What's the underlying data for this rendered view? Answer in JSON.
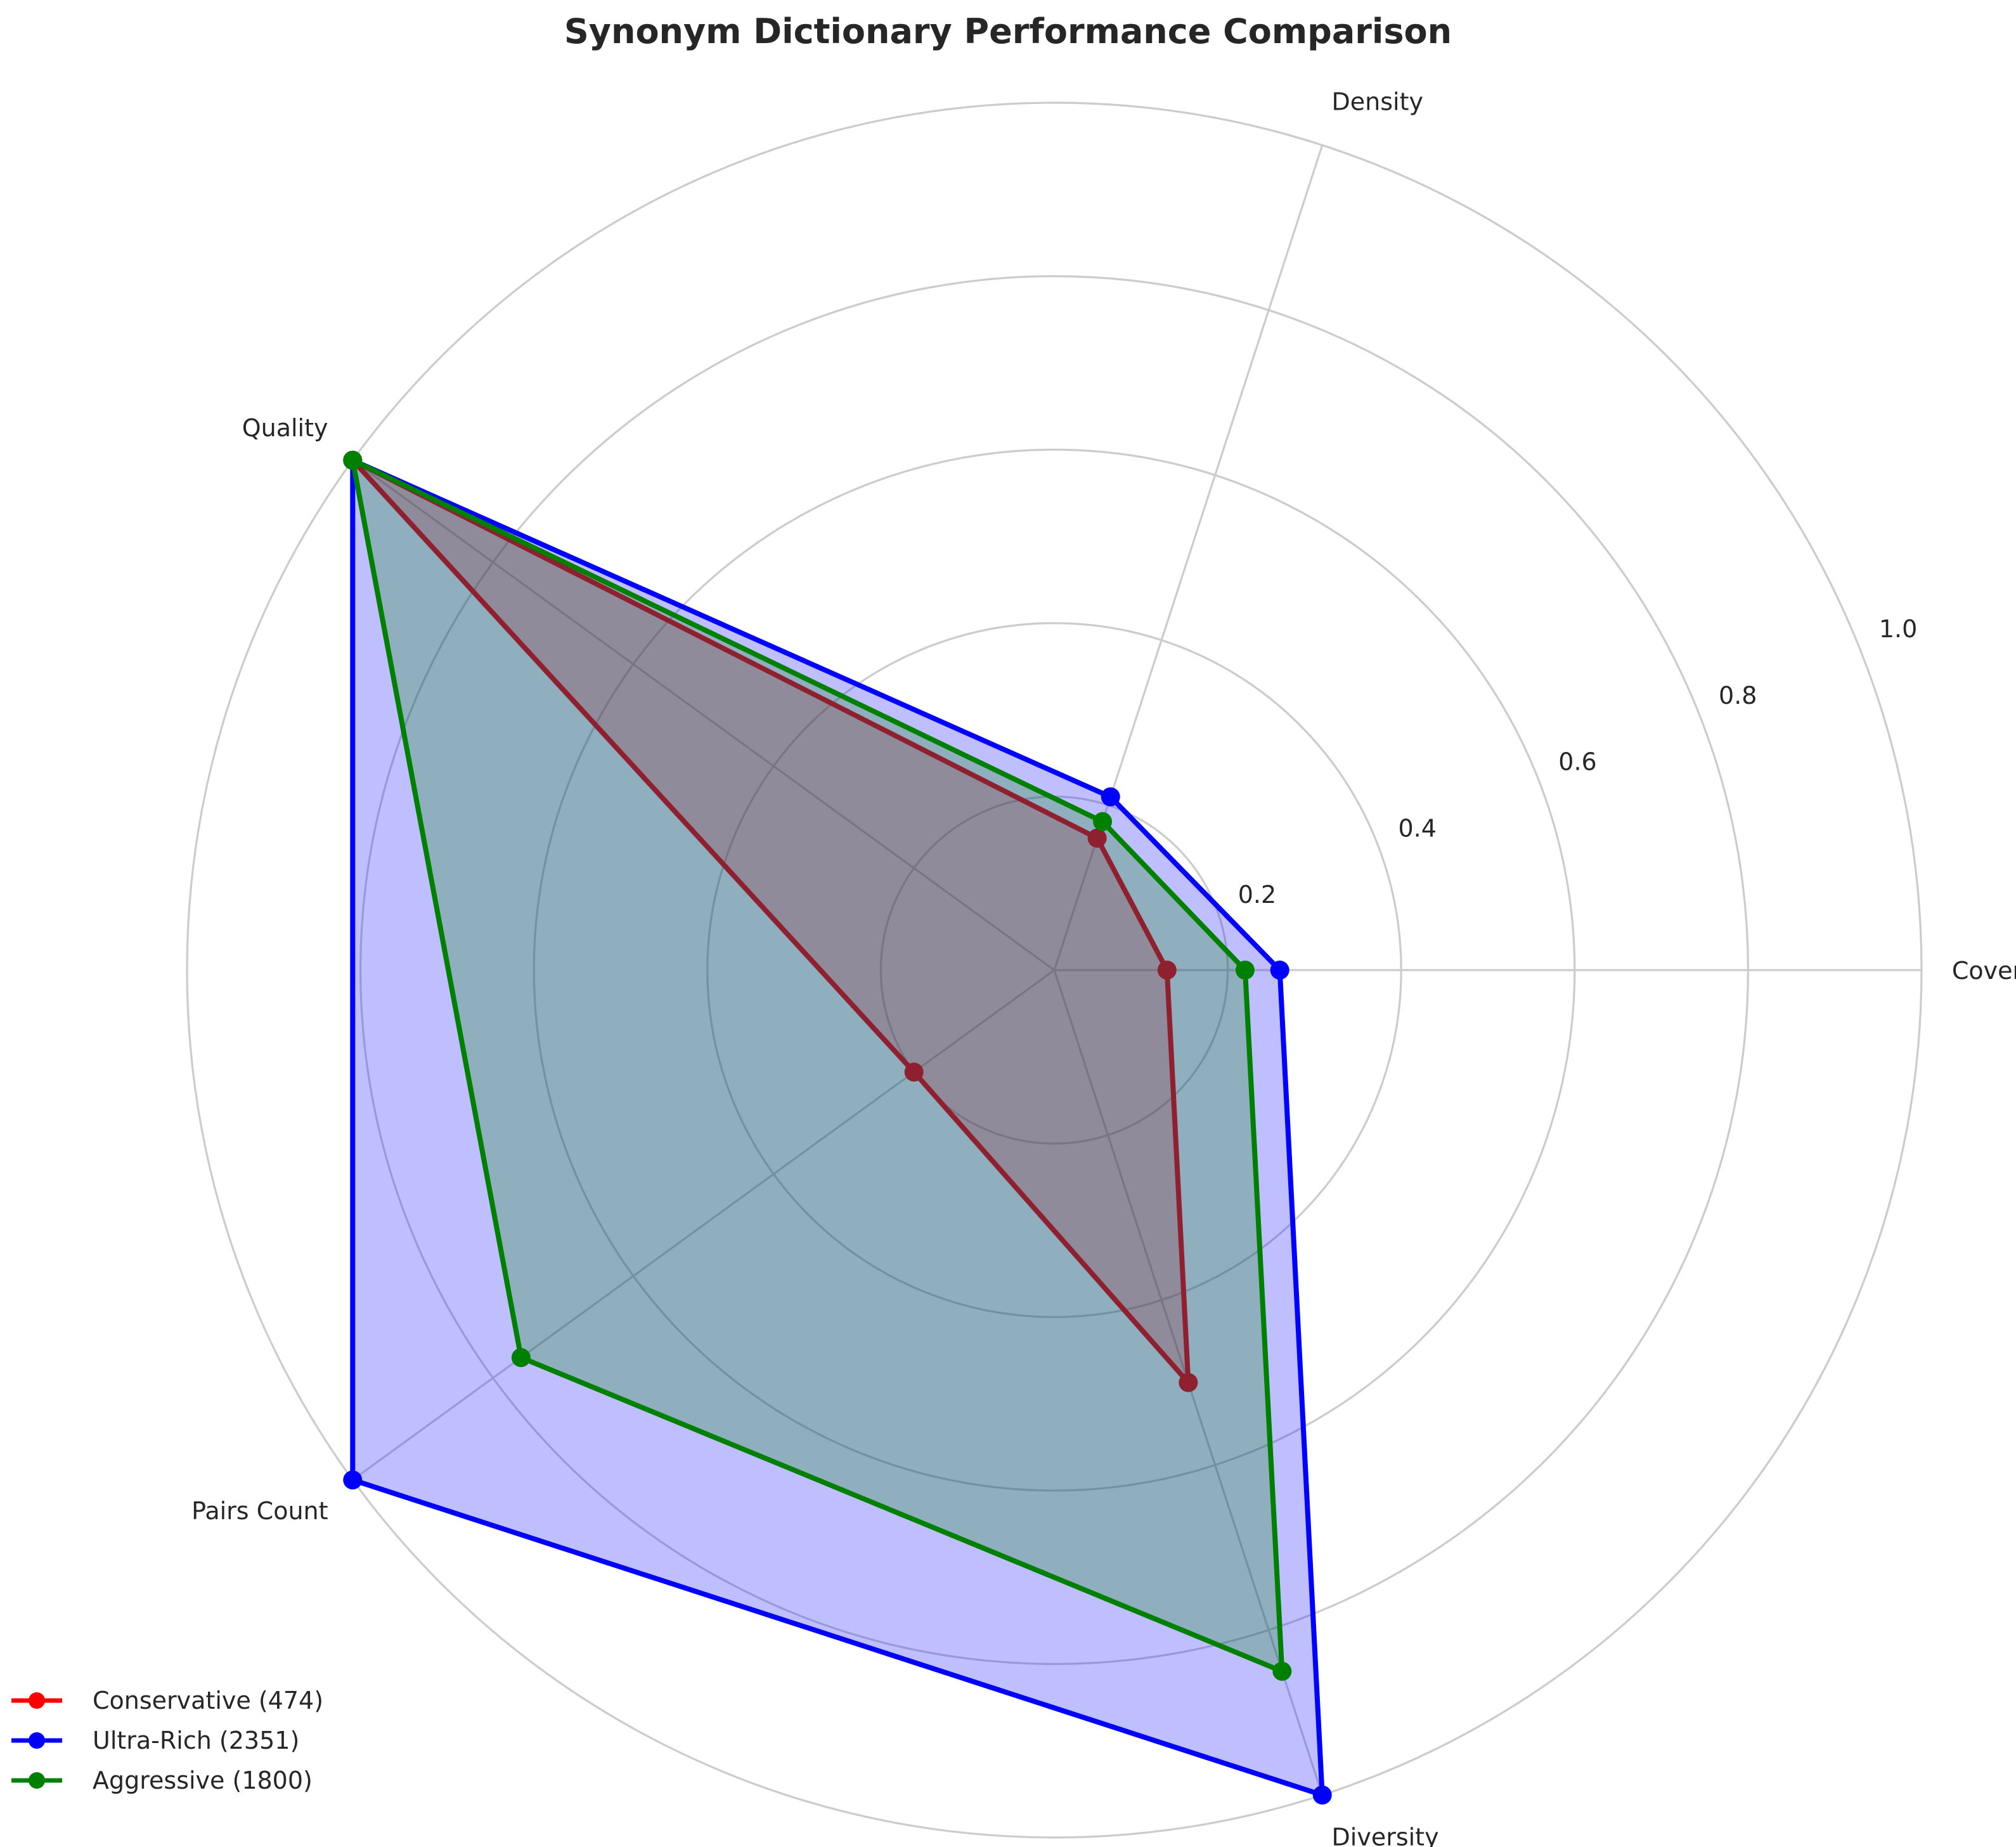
{
  "chart_data": {
    "type": "radar",
    "title": "Synonym Dictionary Performance Comparison",
    "axes": [
      "Coverage",
      "Density",
      "Quality",
      "Pairs Count",
      "Diversity"
    ],
    "rlim": [
      0,
      1.0
    ],
    "rticks": [
      0.2,
      0.4,
      0.6,
      0.8,
      1.0
    ],
    "rtick_labels": [
      "0.2",
      "0.4",
      "0.6",
      "0.8",
      "1.0"
    ],
    "grid": true,
    "legend_position": "bottom-left",
    "series": [
      {
        "name": "Conservative (474)",
        "color": "#ff0000",
        "values": [
          0.13,
          0.16,
          1.0,
          0.2,
          0.5
        ]
      },
      {
        "name": "Ultra-Rich (2351)",
        "color": "#0000ff",
        "values": [
          0.26,
          0.21,
          1.0,
          1.0,
          1.0
        ]
      },
      {
        "name": "Aggressive (1800)",
        "color": "#008000",
        "values": [
          0.22,
          0.18,
          1.0,
          0.76,
          0.85
        ]
      }
    ]
  }
}
